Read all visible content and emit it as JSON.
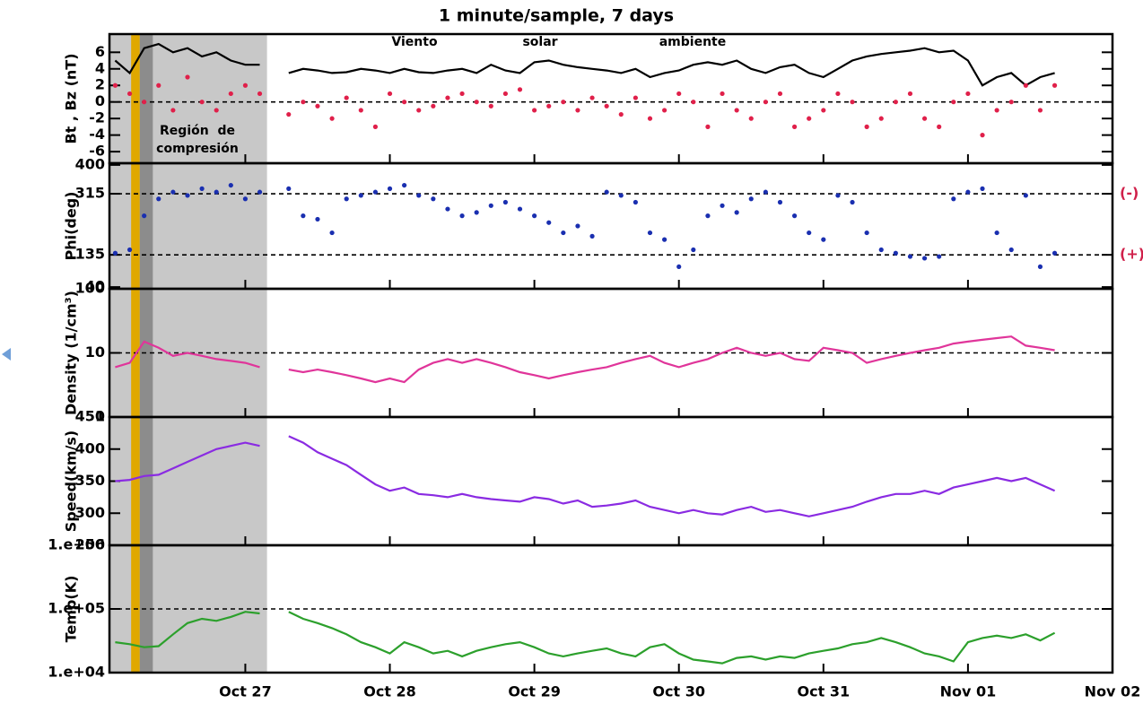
{
  "chart_data": {
    "type": "line",
    "title": "1 minute/sample, 7 days",
    "xlim": [
      0.06,
      7.0
    ],
    "xticks": [
      {
        "value": 1,
        "label": "Oct 27"
      },
      {
        "value": 2,
        "label": "Oct 28"
      },
      {
        "value": 3,
        "label": "Oct 29"
      },
      {
        "value": 4,
        "label": "Oct 30"
      },
      {
        "value": 5,
        "label": "Oct 31"
      },
      {
        "value": 6,
        "label": "Nov 01"
      },
      {
        "value": 7,
        "label": "Nov 02"
      }
    ],
    "x": [
      0.1,
      0.2,
      0.3,
      0.4,
      0.5,
      0.6,
      0.7,
      0.8,
      0.9,
      1.0,
      1.1,
      1.2,
      1.3,
      1.4,
      1.5,
      1.6,
      1.7,
      1.8,
      1.9,
      2.0,
      2.1,
      2.2,
      2.3,
      2.4,
      2.5,
      2.6,
      2.7,
      2.8,
      2.9,
      3.0,
      3.1,
      3.2,
      3.3,
      3.4,
      3.5,
      3.6,
      3.7,
      3.8,
      3.9,
      4.0,
      4.1,
      4.2,
      4.3,
      4.4,
      4.5,
      4.6,
      4.7,
      4.8,
      4.9,
      5.0,
      5.1,
      5.2,
      5.3,
      5.4,
      5.5,
      5.6,
      5.7,
      5.8,
      5.9,
      6.0,
      6.1,
      6.2,
      6.3,
      6.4,
      6.5,
      6.6
    ],
    "shaded_regions": [
      {
        "from": 0.06,
        "to": 1.15,
        "color": "#c8c8c8"
      },
      {
        "from": 0.21,
        "to": 0.27,
        "color": "#e0a800"
      },
      {
        "from": 0.27,
        "to": 0.36,
        "color": "#8c8c8c"
      }
    ],
    "annotations": {
      "compression": [
        "Región  de",
        "compresión"
      ],
      "ambient": [
        "Viento",
        "solar",
        "ambiente"
      ]
    },
    "panels": [
      {
        "ylabel": "Bt , Bz (nT)",
        "ylim": [
          -7.4,
          8.2
        ],
        "yticks": [
          -6,
          -4,
          -2,
          0,
          2,
          4,
          6
        ],
        "log": false,
        "hlines": [
          {
            "value": 0
          }
        ],
        "series": [
          {
            "color": "#000000",
            "style": "line",
            "values": [
              5,
              3.5,
              6.5,
              7,
              6,
              6.5,
              5.5,
              6,
              5,
              4.5,
              4.5,
              null,
              3.5,
              4,
              3.8,
              3.5,
              3.6,
              4,
              3.8,
              3.5,
              4,
              3.6,
              3.5,
              3.8,
              4,
              3.5,
              4.5,
              3.8,
              3.5,
              4.8,
              5,
              4.5,
              4.2,
              4,
              3.8,
              3.5,
              4,
              3,
              3.5,
              3.8,
              4.5,
              4.8,
              4.5,
              5,
              4,
              3.5,
              4.2,
              4.5,
              3.5,
              3,
              4,
              5,
              5.5,
              5.8,
              6,
              6.2,
              6.5,
              6,
              6.2,
              5,
              2,
              3,
              3.5,
              2,
              3,
              3.5
            ]
          },
          {
            "color": "#e0204a",
            "style": "points",
            "values": [
              2,
              1,
              0,
              2,
              -1,
              3,
              0,
              -1,
              1,
              2,
              1,
              null,
              -1.5,
              0,
              -0.5,
              -2,
              0.5,
              -1,
              -3,
              1,
              0,
              -1,
              -0.5,
              0.5,
              1,
              0,
              -0.5,
              1,
              1.5,
              -1,
              -0.5,
              0,
              -1,
              0.5,
              -0.5,
              -1.5,
              0.5,
              -2,
              -1,
              1,
              0,
              -3,
              1,
              -1,
              -2,
              0,
              1,
              -3,
              -2,
              -1,
              1,
              0,
              -3,
              -2,
              0,
              1,
              -2,
              -3,
              0,
              1,
              -4,
              -1,
              0,
              2,
              -1,
              2
            ]
          }
        ]
      },
      {
        "ylabel": "Phi(deg)",
        "ylim": [
          35,
          405
        ],
        "yticks": [
          40,
          135,
          315,
          400
        ],
        "log": false,
        "hlines": [
          {
            "value": 315,
            "label": "(-)"
          },
          {
            "value": 135,
            "label": "(+)"
          }
        ],
        "series": [
          {
            "color": "#1a2fb0",
            "style": "points",
            "values": [
              140,
              150,
              250,
              300,
              320,
              310,
              330,
              320,
              340,
              300,
              320,
              null,
              330,
              250,
              240,
              200,
              300,
              310,
              320,
              330,
              340,
              310,
              300,
              270,
              250,
              260,
              280,
              290,
              270,
              250,
              230,
              200,
              220,
              190,
              320,
              310,
              290,
              200,
              180,
              100,
              150,
              250,
              280,
              260,
              300,
              320,
              290,
              250,
              200,
              180,
              310,
              290,
              200,
              150,
              140,
              130,
              125,
              130,
              300,
              320,
              330,
              200,
              150,
              310,
              100,
              140
            ]
          }
        ]
      },
      {
        "ylabel": "Density (1/cm³)",
        "ylim": [
          1,
          100
        ],
        "yticks": [
          1,
          10,
          100
        ],
        "log": true,
        "hlines": [
          {
            "value": 10
          }
        ],
        "series": [
          {
            "color": "#e0359a",
            "style": "line",
            "values": [
              6,
              7,
              15,
              12,
              9,
              10,
              9,
              8,
              7.5,
              7,
              6,
              null,
              5.5,
              5,
              5.5,
              5,
              4.5,
              4,
              3.5,
              4,
              3.5,
              5.5,
              7,
              8,
              7,
              8,
              7,
              6,
              5,
              4.5,
              4,
              4.5,
              5,
              5.5,
              6,
              7,
              8,
              9,
              7,
              6,
              7,
              8,
              10,
              12,
              10,
              9,
              10,
              8,
              7.5,
              12,
              11,
              10,
              7,
              8,
              9,
              10,
              11,
              12,
              14,
              15,
              16,
              17,
              18,
              13,
              12,
              11
            ]
          }
        ]
      },
      {
        "ylabel": "Speed(km/s)",
        "ylim": [
          250,
          450
        ],
        "yticks": [
          250,
          300,
          350,
          400,
          450
        ],
        "log": false,
        "hlines": [],
        "series": [
          {
            "color": "#8a2be2",
            "style": "line",
            "values": [
              350,
              352,
              358,
              360,
              370,
              380,
              390,
              400,
              405,
              410,
              405,
              null,
              420,
              410,
              395,
              385,
              375,
              360,
              345,
              335,
              340,
              330,
              328,
              325,
              330,
              325,
              322,
              320,
              318,
              325,
              322,
              315,
              320,
              310,
              312,
              315,
              320,
              310,
              305,
              300,
              305,
              300,
              298,
              305,
              310,
              302,
              305,
              300,
              295,
              300,
              305,
              310,
              318,
              325,
              330,
              330,
              335,
              330,
              340,
              345,
              350,
              355,
              350,
              355,
              345,
              335
            ]
          }
        ]
      },
      {
        "ylabel": "Temp(K)",
        "ylim": [
          10000,
          1000000
        ],
        "yticks": [
          {
            "value": 10000,
            "label": "1.e+04"
          },
          {
            "value": 100000,
            "label": "1.e+05"
          },
          {
            "value": 1000000,
            "label": "1.e+06"
          }
        ],
        "log": true,
        "hlines": [
          {
            "value": 100000
          }
        ],
        "series": [
          {
            "color": "#2ca02c",
            "style": "line",
            "values": [
              30000,
              28000,
              25000,
              26000,
              40000,
              60000,
              70000,
              65000,
              75000,
              90000,
              85000,
              null,
              90000,
              70000,
              60000,
              50000,
              40000,
              30000,
              25000,
              20000,
              30000,
              25000,
              20000,
              22000,
              18000,
              22000,
              25000,
              28000,
              30000,
              25000,
              20000,
              18000,
              20000,
              22000,
              24000,
              20000,
              18000,
              25000,
              28000,
              20000,
              16000,
              15000,
              14000,
              17000,
              18000,
              16000,
              18000,
              17000,
              20000,
              22000,
              24000,
              28000,
              30000,
              35000,
              30000,
              25000,
              20000,
              18000,
              15000,
              30000,
              35000,
              38000,
              35000,
              40000,
              32000,
              42000
            ]
          }
        ]
      }
    ]
  }
}
